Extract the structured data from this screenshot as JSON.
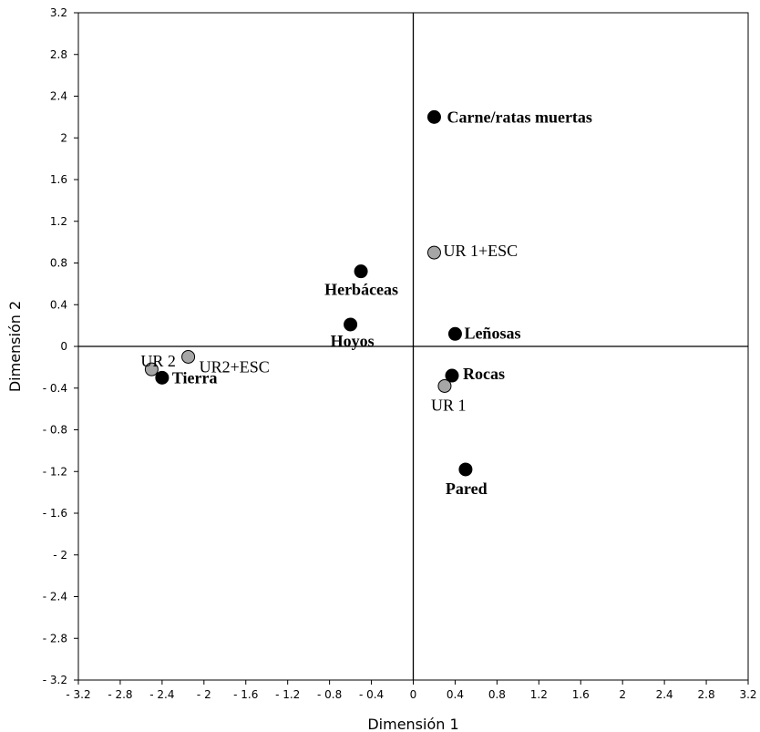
{
  "chart_data": {
    "type": "scatter",
    "xlabel": "Dimensión 1",
    "ylabel": "Dimensión 2",
    "xlim": [
      -3.2,
      3.2
    ],
    "ylim": [
      -3.2,
      3.2
    ],
    "tick_step": 0.4,
    "grid": false,
    "reference_lines": [
      {
        "axis": "x",
        "value": 0
      },
      {
        "axis": "y",
        "value": 0
      }
    ],
    "ticks": [
      "- 3.2",
      "- 2.8",
      "- 2.4",
      "- 2",
      "- 1.6",
      "- 1.2",
      "- 0.8",
      "- 0.4",
      "0",
      "0.4",
      "0.8",
      "1.2",
      "1.6",
      "2",
      "2.4",
      "2.8",
      "3.2"
    ],
    "colors": {
      "black_points": "#000000",
      "gray_points": "#a6a6a6",
      "axis": "#000000"
    },
    "points": [
      {
        "label": "Carne/ratas muertas",
        "x": 0.2,
        "y": 2.2,
        "color": "black",
        "bold": true
      },
      {
        "label": "UR 1+ESC",
        "x": 0.2,
        "y": 0.9,
        "color": "gray",
        "bold": false
      },
      {
        "label": "Herbáceas",
        "x": -0.5,
        "y": 0.72,
        "color": "black",
        "bold": true
      },
      {
        "label": "Hoyos",
        "x": -0.6,
        "y": 0.21,
        "color": "black",
        "bold": true
      },
      {
        "label": "Leñosas",
        "x": 0.4,
        "y": 0.12,
        "color": "black",
        "bold": true
      },
      {
        "label": "UR 2",
        "x": -2.5,
        "y": -0.22,
        "color": "gray",
        "bold": false
      },
      {
        "label": "UR2+ESC",
        "x": -2.15,
        "y": -0.1,
        "color": "gray",
        "bold": false
      },
      {
        "label": "Tierra",
        "x": -2.4,
        "y": -0.3,
        "color": "black",
        "bold": true
      },
      {
        "label": "Rocas",
        "x": 0.37,
        "y": -0.28,
        "color": "black",
        "bold": true
      },
      {
        "label": "UR 1",
        "x": 0.3,
        "y": -0.38,
        "color": "gray",
        "bold": false
      },
      {
        "label": "Pared",
        "x": 0.5,
        "y": -1.18,
        "color": "black",
        "bold": true
      }
    ]
  }
}
